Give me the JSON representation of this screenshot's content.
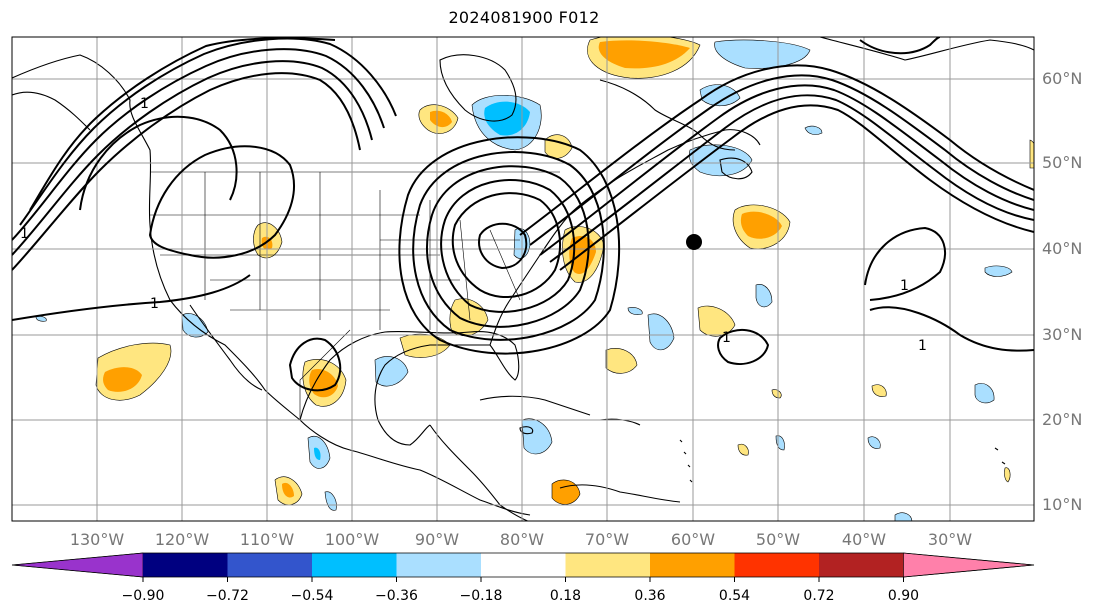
{
  "title": "2024081900 F012",
  "lat_labels": [
    "60°N",
    "50°N",
    "40°N",
    "30°N",
    "20°N",
    "10°N"
  ],
  "lon_labels": [
    "130°W",
    "120°W",
    "110°W",
    "100°W",
    "90°W",
    "80°W",
    "70°W",
    "60°W",
    "50°W",
    "40°W",
    "30°W"
  ],
  "colorbar": {
    "ticks": [
      "−0.90",
      "−0.72",
      "−0.54",
      "−0.36",
      "−0.18",
      "0.18",
      "0.36",
      "0.54",
      "0.72",
      "0.90"
    ],
    "colors": [
      "#9933cc",
      "#000080",
      "#3355cc",
      "#00bfff",
      "#aadfff",
      "#ffffff",
      "#ffe680",
      "#ffa000",
      "#ff3300",
      "#b22222",
      "#ff80aa"
    ]
  },
  "contour_labels": [
    "1",
    "1",
    "1",
    "1",
    "1",
    "1"
  ],
  "colors": {
    "positive_low": "#ffe680",
    "positive_mid": "#ffa000",
    "negative_low": "#aadfff",
    "negative_mid": "#00bfff",
    "contour": "#000000",
    "grid": "#999999",
    "label": "#777777"
  }
}
